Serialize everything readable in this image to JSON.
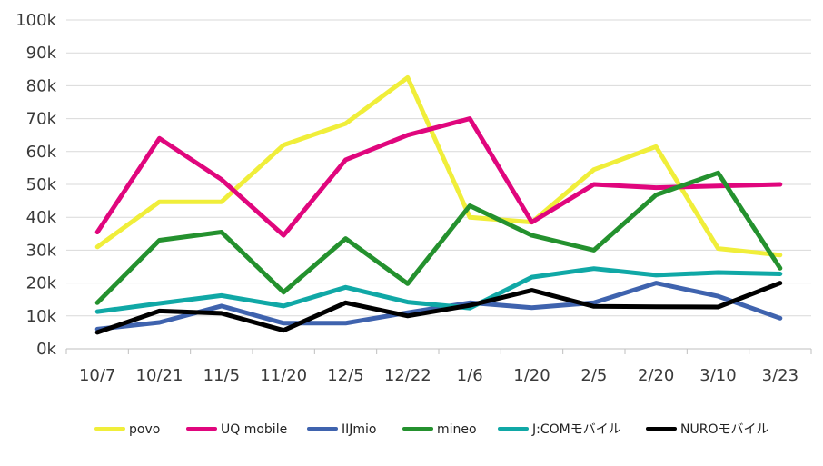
{
  "chart_data": {
    "type": "line",
    "title": "",
    "xlabel": "",
    "ylabel": "",
    "categories": [
      "10/7",
      "10/21",
      "11/5",
      "11/20",
      "12/5",
      "12/22",
      "1/6",
      "1/20",
      "2/5",
      "2/20",
      "3/10",
      "3/23"
    ],
    "ylim": [
      0,
      100000
    ],
    "yticks": [
      {
        "value": 0,
        "label": "0k"
      },
      {
        "value": 10000,
        "label": "10k"
      },
      {
        "value": 20000,
        "label": "20k"
      },
      {
        "value": 30000,
        "label": "30k"
      },
      {
        "value": 40000,
        "label": "40k"
      },
      {
        "value": 50000,
        "label": "50k"
      },
      {
        "value": 60000,
        "label": "60k"
      },
      {
        "value": 70000,
        "label": "70k"
      },
      {
        "value": 80000,
        "label": "80k"
      },
      {
        "value": 90000,
        "label": "90k"
      },
      {
        "value": 100000,
        "label": "100k"
      }
    ],
    "grid": true,
    "legend_position": "bottom",
    "series": [
      {
        "name": "povo",
        "color": "#f0ee3a",
        "values": [
          31000,
          44700,
          44700,
          62000,
          68500,
          82500,
          40000,
          38500,
          54500,
          61500,
          30500,
          28500
        ]
      },
      {
        "name": "UQ mobile",
        "color": "#e0067d",
        "values": [
          35500,
          64000,
          51500,
          34500,
          57500,
          65000,
          70000,
          38500,
          50000,
          49000,
          49500,
          50000
        ]
      },
      {
        "name": "IIJmio",
        "color": "#3f63ae",
        "values": [
          6000,
          8000,
          13000,
          7800,
          7800,
          11000,
          14000,
          12500,
          14000,
          20000,
          16000,
          9300
        ]
      },
      {
        "name": "mineo",
        "color": "#24912e",
        "values": [
          14000,
          33000,
          35500,
          17200,
          33500,
          19800,
          43500,
          34500,
          30000,
          46800,
          53500,
          24500
        ]
      },
      {
        "name": "J:COMモバイル",
        "color": "#10a8a6",
        "values": [
          11300,
          13800,
          16200,
          13000,
          18700,
          14200,
          12400,
          21800,
          24400,
          22400,
          23200,
          22800
        ]
      },
      {
        "name": "NUROモバイル",
        "color": "#000000",
        "values": [
          5000,
          11500,
          10800,
          5600,
          14000,
          10000,
          13200,
          17800,
          12900,
          12800,
          12700,
          20000
        ]
      }
    ]
  }
}
